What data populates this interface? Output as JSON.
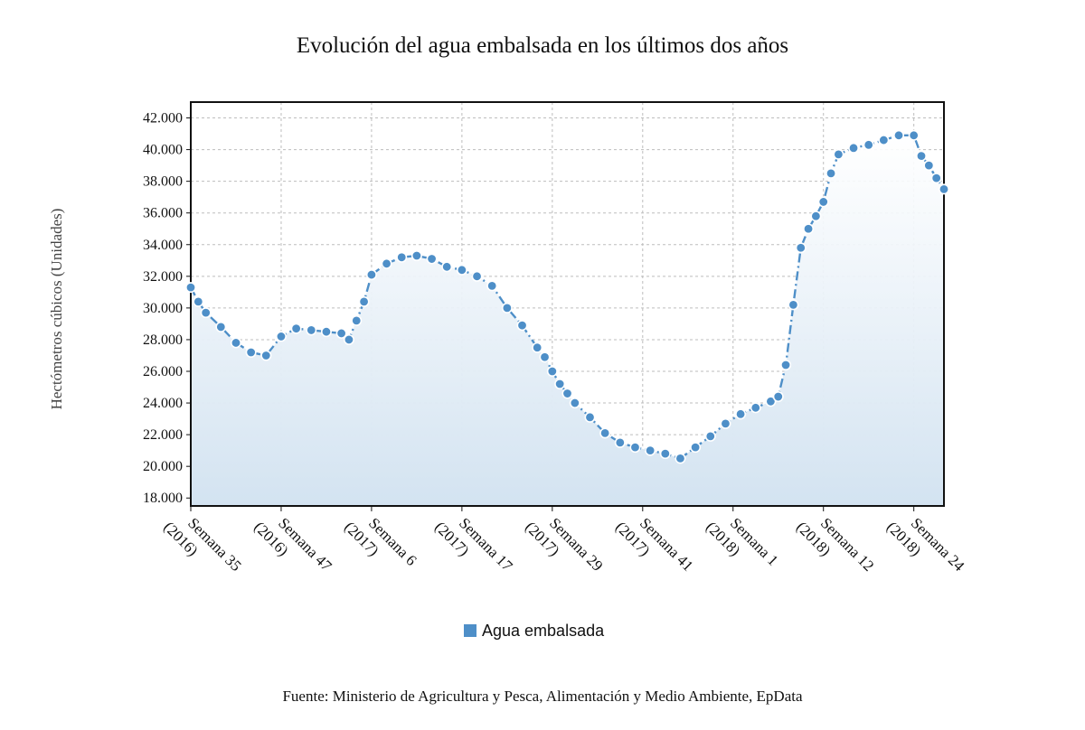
{
  "chart_data": {
    "type": "area",
    "title": "Evolución del agua embalsada en los últimos dos años",
    "ylabel": "Hectómetros cúbicos (Unidades)",
    "xlabel": "",
    "source": "Fuente: Ministerio de Agricultura y Pesca, Alimentación y Medio Ambiente, EpData",
    "ylim": [
      17500,
      43000
    ],
    "yticks": [
      18000,
      20000,
      22000,
      24000,
      26000,
      28000,
      30000,
      32000,
      34000,
      36000,
      38000,
      40000,
      42000
    ],
    "ytick_labels": [
      "18.000",
      "20.000",
      "22.000",
      "24.000",
      "26.000",
      "28.000",
      "30.000",
      "32.000",
      "34.000",
      "36.000",
      "38.000",
      "40.000",
      "42.000"
    ],
    "grid": true,
    "legend_position": "bottom",
    "xticks": [
      {
        "index": 0,
        "line1": "Semana 35",
        "line2": "(2016)"
      },
      {
        "index": 12,
        "line1": "Semana 47",
        "line2": "(2016)"
      },
      {
        "index": 24,
        "line1": "Semana 6",
        "line2": "(2017)"
      },
      {
        "index": 36,
        "line1": "Semana 17",
        "line2": "(2017)"
      },
      {
        "index": 48,
        "line1": "Semana 29",
        "line2": "(2017)"
      },
      {
        "index": 60,
        "line1": "Semana 41",
        "line2": "(2017)"
      },
      {
        "index": 72,
        "line1": "Semana 1",
        "line2": "(2018)"
      },
      {
        "index": 84,
        "line1": "Semana 12",
        "line2": "(2018)"
      },
      {
        "index": 96,
        "line1": "Semana 24",
        "line2": "(2018)"
      }
    ],
    "series": [
      {
        "name": "Agua embalsada",
        "color": "#4e8fc8",
        "points": [
          {
            "i": 0,
            "v": 31300
          },
          {
            "i": 1,
            "v": 30400
          },
          {
            "i": 2,
            "v": 29700
          },
          {
            "i": 4,
            "v": 28800
          },
          {
            "i": 6,
            "v": 27800
          },
          {
            "i": 8,
            "v": 27200
          },
          {
            "i": 10,
            "v": 27000
          },
          {
            "i": 12,
            "v": 28200
          },
          {
            "i": 14,
            "v": 28700
          },
          {
            "i": 16,
            "v": 28600
          },
          {
            "i": 18,
            "v": 28500
          },
          {
            "i": 20,
            "v": 28400
          },
          {
            "i": 21,
            "v": 28000
          },
          {
            "i": 22,
            "v": 29200
          },
          {
            "i": 23,
            "v": 30400
          },
          {
            "i": 24,
            "v": 32100
          },
          {
            "i": 26,
            "v": 32800
          },
          {
            "i": 28,
            "v": 33200
          },
          {
            "i": 30,
            "v": 33300
          },
          {
            "i": 32,
            "v": 33100
          },
          {
            "i": 34,
            "v": 32600
          },
          {
            "i": 36,
            "v": 32400
          },
          {
            "i": 38,
            "v": 32000
          },
          {
            "i": 40,
            "v": 31400
          },
          {
            "i": 42,
            "v": 30000
          },
          {
            "i": 44,
            "v": 28900
          },
          {
            "i": 46,
            "v": 27500
          },
          {
            "i": 47,
            "v": 26900
          },
          {
            "i": 48,
            "v": 26000
          },
          {
            "i": 49,
            "v": 25200
          },
          {
            "i": 50,
            "v": 24600
          },
          {
            "i": 51,
            "v": 24000
          },
          {
            "i": 53,
            "v": 23100
          },
          {
            "i": 55,
            "v": 22100
          },
          {
            "i": 57,
            "v": 21500
          },
          {
            "i": 59,
            "v": 21200
          },
          {
            "i": 61,
            "v": 21000
          },
          {
            "i": 63,
            "v": 20800
          },
          {
            "i": 65,
            "v": 20500
          },
          {
            "i": 67,
            "v": 21200
          },
          {
            "i": 69,
            "v": 21900
          },
          {
            "i": 71,
            "v": 22700
          },
          {
            "i": 73,
            "v": 23300
          },
          {
            "i": 75,
            "v": 23700
          },
          {
            "i": 77,
            "v": 24100
          },
          {
            "i": 78,
            "v": 24400
          },
          {
            "i": 79,
            "v": 26400
          },
          {
            "i": 80,
            "v": 30200
          },
          {
            "i": 81,
            "v": 33800
          },
          {
            "i": 82,
            "v": 35000
          },
          {
            "i": 83,
            "v": 35800
          },
          {
            "i": 84,
            "v": 36700
          },
          {
            "i": 85,
            "v": 38500
          },
          {
            "i": 86,
            "v": 39700
          },
          {
            "i": 88,
            "v": 40100
          },
          {
            "i": 90,
            "v": 40300
          },
          {
            "i": 92,
            "v": 40600
          },
          {
            "i": 94,
            "v": 40900
          },
          {
            "i": 96,
            "v": 40900
          },
          {
            "i": 97,
            "v": 39600
          },
          {
            "i": 98,
            "v": 39000
          },
          {
            "i": 99,
            "v": 38200
          },
          {
            "i": 100,
            "v": 37500
          }
        ]
      }
    ]
  }
}
